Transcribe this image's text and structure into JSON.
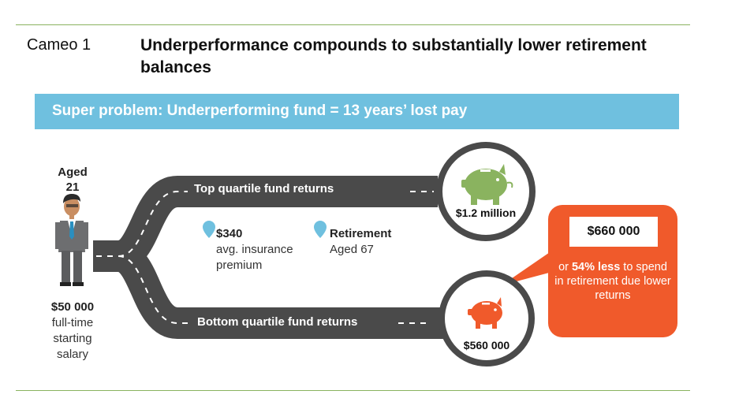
{
  "header": {
    "cameo_label": "Cameo 1",
    "title": "Underperformance compounds to substantially lower retirement balances"
  },
  "banner": {
    "text": "Super problem: Underperforming fund = 13 years’ lost pay",
    "color": "#6fc0df"
  },
  "person": {
    "age_label": "Aged",
    "age_value": "21",
    "salary_value": "$50 000",
    "salary_line1": "full-time",
    "salary_line2": "starting",
    "salary_line3": "salary"
  },
  "roads": {
    "top_label": "Top quartile fund returns",
    "bottom_label": "Bottom quartile fund returns",
    "road_color": "#4a4a4a"
  },
  "info": {
    "insurance_value": "$340",
    "insurance_line1": "avg. insurance",
    "insurance_line2": "premium",
    "retirement_title": "Retirement",
    "retirement_age": "Aged 67",
    "pin_color": "#6fc0df"
  },
  "outcomes": {
    "top_value": "$1.2 million",
    "top_icon": "piggy-bank-green",
    "top_color": "#8ab35f",
    "bottom_value": "$560 000",
    "bottom_icon": "piggy-bank-orange",
    "bottom_color": "#f05a2b"
  },
  "callout": {
    "amount": "$660 000",
    "pre": "or ",
    "highlight": "54% less",
    "post": " to spend in retirement due lower returns",
    "color": "#f05a2b"
  }
}
